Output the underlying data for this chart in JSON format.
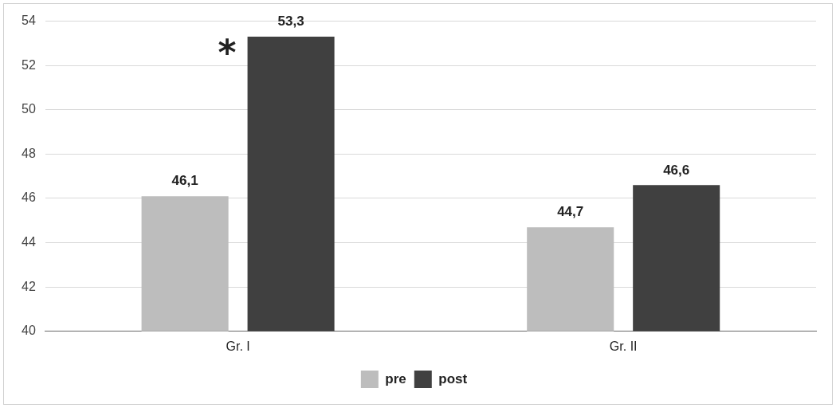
{
  "chart_data": {
    "type": "bar",
    "categories": [
      "Gr. I",
      "Gr. II"
    ],
    "series": [
      {
        "name": "pre",
        "color": "#bdbdbd",
        "values": [
          46.1,
          44.7
        ],
        "value_labels": [
          "46,1",
          "44,7"
        ]
      },
      {
        "name": "post",
        "color": "#404040",
        "values": [
          53.3,
          46.6
        ],
        "value_labels": [
          "53,3",
          "46,6"
        ]
      }
    ],
    "ylim": [
      40,
      54
    ],
    "yticks": [
      40,
      42,
      44,
      46,
      48,
      50,
      52,
      54
    ],
    "grid": "y",
    "legend": "bottom",
    "annotations": [
      "*"
    ]
  }
}
